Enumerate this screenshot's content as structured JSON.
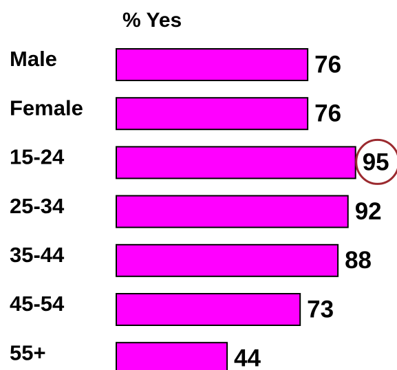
{
  "chart_data": {
    "type": "hbar",
    "title": "% Yes",
    "categories": [
      "Male",
      "Female",
      "15-24",
      "25-34",
      "35-44",
      "45-54",
      "55+"
    ],
    "values": [
      76,
      76,
      95,
      92,
      88,
      73,
      44
    ],
    "color": "#ff00ff",
    "xlim": [
      0,
      100
    ],
    "highlight": "15-24",
    "highlight_color": "#9b2a2f"
  }
}
